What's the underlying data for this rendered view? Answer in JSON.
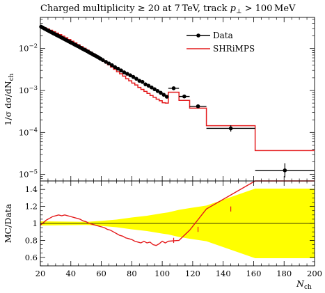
{
  "title": "Charged multiplicity ≥ 20 at 7 TeV, track p⊥ > 100 MeV",
  "title_parts": {
    "pre": "Charged multiplicity ≥ 20 at 7 TeV, track ",
    "p": "p",
    "sub": "⊥",
    "post": " > 100 MeV"
  },
  "ylabel_main": "1/σ dσ/dN",
  "ylabel_main_sub": "ch",
  "ylabel_ratio": "MC/Data",
  "xlabel": "N",
  "xlabel_sub": "ch",
  "legend": {
    "data": "Data",
    "mc": "SHRiMPS"
  },
  "colors": {
    "data": "#000000",
    "mc": "#e41a1c",
    "band": "#ffff00"
  },
  "chart_data": [
    {
      "type": "line",
      "panel": "main",
      "yscale": "log",
      "xlim": [
        20,
        200
      ],
      "ylim": [
        7e-06,
        0.055
      ],
      "y_ticks": [
        "10^-5",
        "10^-4",
        "10^-3",
        "10^-2"
      ],
      "data_points": [
        {
          "x": 20.5,
          "y": 0.033
        },
        {
          "x": 21.5,
          "y": 0.0315
        },
        {
          "x": 22.5,
          "y": 0.03
        },
        {
          "x": 23.5,
          "y": 0.0287
        },
        {
          "x": 24.5,
          "y": 0.0274
        },
        {
          "x": 25.5,
          "y": 0.0262
        },
        {
          "x": 26.5,
          "y": 0.0251
        },
        {
          "x": 27.5,
          "y": 0.024
        },
        {
          "x": 28.5,
          "y": 0.023
        },
        {
          "x": 29.5,
          "y": 0.022
        },
        {
          "x": 30.5,
          "y": 0.0211
        },
        {
          "x": 31.5,
          "y": 0.0202
        },
        {
          "x": 32.5,
          "y": 0.0193
        },
        {
          "x": 33.5,
          "y": 0.0185
        },
        {
          "x": 34.5,
          "y": 0.0177
        },
        {
          "x": 35.5,
          "y": 0.0169
        },
        {
          "x": 36.5,
          "y": 0.0162
        },
        {
          "x": 37.5,
          "y": 0.0155
        },
        {
          "x": 38.5,
          "y": 0.0148
        },
        {
          "x": 39.5,
          "y": 0.0142
        },
        {
          "x": 40.5,
          "y": 0.0136
        },
        {
          "x": 41.5,
          "y": 0.013
        },
        {
          "x": 42.5,
          "y": 0.0124
        },
        {
          "x": 43.5,
          "y": 0.0119
        },
        {
          "x": 44.5,
          "y": 0.0114
        },
        {
          "x": 45.5,
          "y": 0.0109
        },
        {
          "x": 46.5,
          "y": 0.0104
        },
        {
          "x": 47.5,
          "y": 0.0099
        },
        {
          "x": 48.5,
          "y": 0.0095
        },
        {
          "x": 49.5,
          "y": 0.0091
        },
        {
          "x": 50.5,
          "y": 0.0087
        },
        {
          "x": 51.5,
          "y": 0.0083
        },
        {
          "x": 52.5,
          "y": 0.0079
        },
        {
          "x": 53.5,
          "y": 0.0076
        },
        {
          "x": 54.5,
          "y": 0.0072
        },
        {
          "x": 55.5,
          "y": 0.0069
        },
        {
          "x": 56.5,
          "y": 0.0066
        },
        {
          "x": 57.5,
          "y": 0.0063
        },
        {
          "x": 58.5,
          "y": 0.006
        },
        {
          "x": 59.5,
          "y": 0.0057
        },
        {
          "x": 61,
          "y": 0.0053
        },
        {
          "x": 63,
          "y": 0.0048
        },
        {
          "x": 65,
          "y": 0.0044
        },
        {
          "x": 67,
          "y": 0.004
        },
        {
          "x": 69,
          "y": 0.0036
        },
        {
          "x": 71,
          "y": 0.0033
        },
        {
          "x": 73,
          "y": 0.003
        },
        {
          "x": 75,
          "y": 0.0027
        },
        {
          "x": 77,
          "y": 0.0025
        },
        {
          "x": 79,
          "y": 0.0023
        },
        {
          "x": 81,
          "y": 0.0021
        },
        {
          "x": 83,
          "y": 0.0019
        },
        {
          "x": 85,
          "y": 0.0017
        },
        {
          "x": 87,
          "y": 0.0016
        },
        {
          "x": 89,
          "y": 0.0014
        },
        {
          "x": 91,
          "y": 0.0013
        },
        {
          "x": 93,
          "y": 0.00118
        },
        {
          "x": 95,
          "y": 0.00107
        },
        {
          "x": 97,
          "y": 0.00097
        },
        {
          "x": 99,
          "y": 0.00088
        },
        {
          "x": 101,
          "y": 0.00079
        },
        {
          "x": 103,
          "y": 0.00071
        },
        {
          "x": 107.5,
          "y": 0.00113,
          "xlo": 104,
          "xhi": 111
        },
        {
          "x": 114.5,
          "y": 0.00072,
          "xlo": 111,
          "xhi": 118
        },
        {
          "x": 123.5,
          "y": 0.00042,
          "xlo": 118,
          "xhi": 129
        },
        {
          "x": 145,
          "y": 0.000125,
          "xlo": 129,
          "xhi": 161,
          "ylo": 0.000105,
          "yhi": 0.000148
        },
        {
          "x": 180.5,
          "y": 1.25e-05,
          "xlo": 161,
          "xhi": 200,
          "ylo": 8.5e-06,
          "yhi": 1.85e-05
        }
      ],
      "mc_steps": [
        {
          "xlo": 20,
          "xhi": 22,
          "y": 0.0335
        },
        {
          "xlo": 22,
          "xhi": 24,
          "y": 0.031
        },
        {
          "xlo": 24,
          "xhi": 26,
          "y": 0.0292
        },
        {
          "xlo": 26,
          "xhi": 28,
          "y": 0.0272
        },
        {
          "xlo": 28,
          "xhi": 30,
          "y": 0.0251
        },
        {
          "xlo": 30,
          "xhi": 32,
          "y": 0.0232
        },
        {
          "xlo": 32,
          "xhi": 34,
          "y": 0.0214
        },
        {
          "xlo": 34,
          "xhi": 36,
          "y": 0.0196
        },
        {
          "xlo": 36,
          "xhi": 38,
          "y": 0.018
        },
        {
          "xlo": 38,
          "xhi": 40,
          "y": 0.0164
        },
        {
          "xlo": 40,
          "xhi": 42,
          "y": 0.0149
        },
        {
          "xlo": 42,
          "xhi": 44,
          "y": 0.0135
        },
        {
          "xlo": 44,
          "xhi": 46,
          "y": 0.0123
        },
        {
          "xlo": 46,
          "xhi": 48,
          "y": 0.0111
        },
        {
          "xlo": 48,
          "xhi": 50,
          "y": 0.0101
        },
        {
          "xlo": 50,
          "xhi": 52,
          "y": 0.0091
        },
        {
          "xlo": 52,
          "xhi": 54,
          "y": 0.0082
        },
        {
          "xlo": 54,
          "xhi": 56,
          "y": 0.0074
        },
        {
          "xlo": 56,
          "xhi": 58,
          "y": 0.0066
        },
        {
          "xlo": 58,
          "xhi": 60,
          "y": 0.0059
        },
        {
          "xlo": 60,
          "xhi": 62,
          "y": 0.0053
        },
        {
          "xlo": 62,
          "xhi": 64,
          "y": 0.0047
        },
        {
          "xlo": 64,
          "xhi": 66,
          "y": 0.0041
        },
        {
          "xlo": 66,
          "xhi": 68,
          "y": 0.0036
        },
        {
          "xlo": 68,
          "xhi": 70,
          "y": 0.0032
        },
        {
          "xlo": 70,
          "xhi": 72,
          "y": 0.0028
        },
        {
          "xlo": 72,
          "xhi": 74,
          "y": 0.0025
        },
        {
          "xlo": 74,
          "xhi": 76,
          "y": 0.0022
        },
        {
          "xlo": 76,
          "xhi": 78,
          "y": 0.0019
        },
        {
          "xlo": 78,
          "xhi": 80,
          "y": 0.0017
        },
        {
          "xlo": 80,
          "xhi": 82,
          "y": 0.0015
        },
        {
          "xlo": 82,
          "xhi": 84,
          "y": 0.00135
        },
        {
          "xlo": 84,
          "xhi": 86,
          "y": 0.00118
        },
        {
          "xlo": 86,
          "xhi": 88,
          "y": 0.00106
        },
        {
          "xlo": 88,
          "xhi": 90,
          "y": 0.00095
        },
        {
          "xlo": 90,
          "xhi": 92,
          "y": 0.00085
        },
        {
          "xlo": 92,
          "xhi": 94,
          "y": 0.00076
        },
        {
          "xlo": 94,
          "xhi": 96,
          "y": 0.00069
        },
        {
          "xlo": 96,
          "xhi": 98,
          "y": 0.00062
        },
        {
          "xlo": 98,
          "xhi": 100,
          "y": 0.00057
        },
        {
          "xlo": 100,
          "xhi": 102,
          "y": 0.00051
        },
        {
          "xlo": 102,
          "xhi": 104,
          "y": 0.0005
        },
        {
          "xlo": 104,
          "xhi": 111,
          "y": 0.00091
        },
        {
          "xlo": 111,
          "xhi": 118,
          "y": 0.00058
        },
        {
          "xlo": 118,
          "xhi": 129,
          "y": 0.00038
        },
        {
          "xlo": 129,
          "xhi": 161,
          "y": 0.000145
        },
        {
          "xlo": 161,
          "xhi": 200,
          "y": 3.7e-05
        }
      ]
    },
    {
      "type": "line",
      "panel": "ratio",
      "xlim": [
        20,
        200
      ],
      "ylim": [
        0.5,
        1.5
      ],
      "y_ticks": [
        0.6,
        0.8,
        1,
        1.2,
        1.4
      ],
      "x_ticks": [
        20,
        40,
        60,
        80,
        100,
        120,
        140,
        160,
        180,
        200
      ],
      "band_half_width": [
        {
          "x": 20,
          "v": 0.025
        },
        {
          "x": 40,
          "v": 0.02
        },
        {
          "x": 50,
          "v": 0.018
        },
        {
          "x": 60,
          "v": 0.03
        },
        {
          "x": 70,
          "v": 0.045
        },
        {
          "x": 80,
          "v": 0.07
        },
        {
          "x": 90,
          "v": 0.09
        },
        {
          "x": 100,
          "v": 0.12
        },
        {
          "x": 104,
          "v": 0.13
        },
        {
          "x": 111,
          "v": 0.16
        },
        {
          "x": 118,
          "v": 0.18
        },
        {
          "x": 129,
          "v": 0.21
        },
        {
          "x": 161,
          "v": 0.41
        },
        {
          "x": 200,
          "v": 0.41
        }
      ],
      "ratio": [
        {
          "x": 20,
          "y": 0.98
        },
        {
          "x": 22,
          "y": 1.01
        },
        {
          "x": 24,
          "y": 1.04
        },
        {
          "x": 26,
          "y": 1.06
        },
        {
          "x": 28,
          "y": 1.08
        },
        {
          "x": 30,
          "y": 1.09
        },
        {
          "x": 32,
          "y": 1.1
        },
        {
          "x": 34,
          "y": 1.09
        },
        {
          "x": 36,
          "y": 1.1
        },
        {
          "x": 38,
          "y": 1.09
        },
        {
          "x": 40,
          "y": 1.08
        },
        {
          "x": 42,
          "y": 1.07
        },
        {
          "x": 44,
          "y": 1.06
        },
        {
          "x": 46,
          "y": 1.05
        },
        {
          "x": 48,
          "y": 1.03
        },
        {
          "x": 50,
          "y": 1.02
        },
        {
          "x": 52,
          "y": 1.0
        },
        {
          "x": 54,
          "y": 0.99
        },
        {
          "x": 56,
          "y": 0.98
        },
        {
          "x": 58,
          "y": 0.97
        },
        {
          "x": 60,
          "y": 0.96
        },
        {
          "x": 62,
          "y": 0.95
        },
        {
          "x": 64,
          "y": 0.93
        },
        {
          "x": 66,
          "y": 0.92
        },
        {
          "x": 68,
          "y": 0.9
        },
        {
          "x": 70,
          "y": 0.88
        },
        {
          "x": 72,
          "y": 0.86
        },
        {
          "x": 74,
          "y": 0.85
        },
        {
          "x": 76,
          "y": 0.83
        },
        {
          "x": 78,
          "y": 0.82
        },
        {
          "x": 80,
          "y": 0.81
        },
        {
          "x": 82,
          "y": 0.79
        },
        {
          "x": 84,
          "y": 0.78
        },
        {
          "x": 86,
          "y": 0.77
        },
        {
          "x": 88,
          "y": 0.79
        },
        {
          "x": 90,
          "y": 0.77
        },
        {
          "x": 92,
          "y": 0.78
        },
        {
          "x": 94,
          "y": 0.75
        },
        {
          "x": 96,
          "y": 0.74
        },
        {
          "x": 98,
          "y": 0.76
        },
        {
          "x": 100,
          "y": 0.79
        },
        {
          "x": 102,
          "y": 0.77
        },
        {
          "x": 104,
          "y": 0.79
        },
        {
          "x": 111,
          "y": 0.8
        },
        {
          "x": 118,
          "y": 0.92
        },
        {
          "x": 129,
          "y": 1.17
        },
        {
          "x": 161,
          "y": 1.5
        },
        {
          "x": 200,
          "y": 1.5
        }
      ]
    }
  ]
}
